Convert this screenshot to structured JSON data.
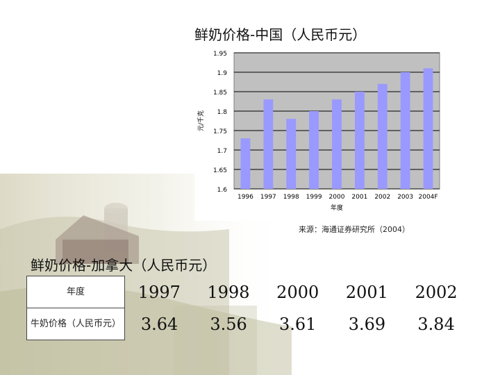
{
  "cn_section": {
    "title": "鲜奶价格-中国（人民币元）",
    "source": "来源：海通证券研究所（2004）"
  },
  "chart_data": {
    "type": "bar",
    "categories": [
      "1996",
      "1997",
      "1998",
      "1999",
      "2000",
      "2001",
      "2002",
      "2003",
      "2004F"
    ],
    "values": [
      1.73,
      1.83,
      1.78,
      1.8,
      1.83,
      1.85,
      1.87,
      1.9,
      1.91
    ],
    "title": "鲜奶价格-中国（人民币元）",
    "xlabel": "年度",
    "ylabel": "元/千克",
    "ylim": [
      1.6,
      1.95
    ],
    "yticks": [
      "1.6",
      "1.65",
      "1.7",
      "1.75",
      "1.8",
      "1.85",
      "1.9",
      "1.95"
    ],
    "grid": true,
    "bar_color": "#9999ff",
    "plot_bg": "#c0c0c0"
  },
  "ca_section": {
    "title": "鲜奶价格-加拿大（人民币元）",
    "table": {
      "header_label": "年度",
      "row_label": "牛奶价格（人民币元）",
      "years": [
        "1997",
        "1998",
        "2000",
        "2001",
        "2002"
      ],
      "prices": [
        "3.64",
        "3.56",
        "3.61",
        "3.69",
        "3.84"
      ]
    }
  }
}
